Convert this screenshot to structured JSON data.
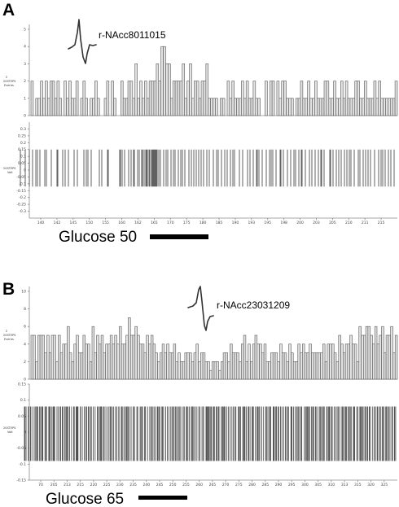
{
  "chart_data": [
    {
      "type": "bar",
      "panel": "A",
      "unit_label": "r-NAcc8011015",
      "stimulus_label": "Glucose 50",
      "histogram": {
        "ylabel_lines": [
          "Σ",
          "20STEPS",
          "Events"
        ],
        "yticks": [
          0,
          1,
          2,
          3,
          4,
          5
        ],
        "ylim": [
          0,
          5
        ],
        "counts": [
          2,
          0,
          1,
          1,
          2,
          1,
          2,
          1,
          2,
          2,
          1,
          2,
          1,
          0,
          2,
          1,
          2,
          1,
          1,
          2,
          0,
          1,
          2,
          1,
          0,
          1,
          1,
          2,
          1,
          0,
          0,
          1,
          2,
          0,
          2,
          1,
          0,
          0,
          2,
          1,
          1,
          2,
          2,
          1,
          3,
          1,
          2,
          1,
          2,
          1,
          2,
          2,
          2,
          3,
          2,
          4,
          4,
          3,
          3,
          1,
          2,
          2,
          2,
          2,
          3,
          1,
          2,
          3,
          1,
          2,
          2,
          1,
          2,
          2,
          3,
          1,
          1,
          1,
          1,
          0,
          1,
          1,
          0,
          2,
          1,
          2,
          1,
          1,
          1,
          2,
          1,
          2,
          1,
          1,
          2,
          1,
          1,
          0,
          0,
          2,
          0,
          2,
          2,
          0,
          2,
          1,
          2,
          2,
          1,
          1,
          1,
          0,
          1,
          1,
          2,
          1,
          1,
          2,
          1,
          1,
          2,
          1,
          1,
          1,
          2,
          2,
          1,
          1,
          2,
          1,
          1,
          2,
          1,
          2,
          1,
          1,
          1,
          2,
          2,
          1,
          1,
          2,
          1,
          1,
          1,
          2,
          1,
          2,
          1,
          1,
          1,
          1,
          1,
          1,
          2
        ]
      },
      "raster": {
        "ylabel_lines": [
          "20STEPS",
          "Volt"
        ],
        "yticks": [
          0.3,
          0.25,
          0.2,
          0.15,
          0.1,
          0.05,
          0,
          -0.05,
          -0.1,
          -0.15,
          -0.2,
          -0.25,
          -0.3
        ],
        "ylim": [
          -0.35,
          0.35
        ],
        "spike_amplitude": [
          -0.12,
          0.15
        ],
        "spike_times": [
          25,
          31,
          36,
          40,
          44,
          46,
          49,
          55,
          57,
          63,
          70,
          71,
          77,
          80,
          84,
          91,
          95,
          103,
          106,
          108,
          112,
          122,
          125,
          132,
          133,
          147,
          148,
          150,
          153,
          158,
          161,
          164,
          165,
          169,
          171,
          174,
          175,
          177,
          179,
          180,
          181,
          183,
          184,
          186,
          187,
          188,
          189,
          190,
          191,
          192,
          193,
          195,
          197,
          201,
          204,
          206,
          210,
          213,
          215,
          219,
          222,
          224,
          227,
          232,
          235,
          238,
          241,
          244,
          247,
          250,
          254,
          257,
          262,
          266,
          268,
          272,
          276,
          279,
          283,
          286,
          288,
          294,
          298,
          304,
          307,
          311,
          315,
          316,
          318,
          322,
          327,
          331,
          333,
          335,
          339,
          344,
          345,
          348,
          353,
          357,
          361,
          363,
          367,
          370,
          371,
          375,
          380,
          383,
          387,
          391,
          394,
          395,
          398,
          405,
          406,
          409,
          413,
          416,
          419,
          423,
          426,
          429,
          431,
          435,
          440,
          442,
          446,
          449,
          452,
          455,
          460,
          465,
          468,
          470,
          473,
          477,
          480,
          484
        ]
      },
      "xaxis": {
        "range": [
          134,
          318
        ],
        "ticks": [
          140,
          142,
          145,
          150,
          155,
          160,
          162,
          165,
          170,
          175,
          180,
          185,
          190,
          193,
          195,
          198,
          200,
          203,
          205,
          210,
          211,
          215
        ]
      }
    },
    {
      "type": "bar",
      "panel": "B",
      "unit_label": "r-NAcc23031209",
      "stimulus_label": "Glucose 65",
      "histogram": {
        "ylabel_lines": [
          "Σ",
          "20STEPS",
          "Events"
        ],
        "yticks": [
          0,
          2,
          4,
          6,
          8,
          10
        ],
        "ylim": [
          0,
          10
        ],
        "counts": [
          5,
          5,
          2,
          5,
          5,
          5,
          3,
          5,
          3,
          5,
          5,
          2,
          5,
          3,
          4,
          4,
          6,
          3,
          2,
          4,
          5,
          3,
          3,
          5,
          4,
          4,
          2,
          6,
          3,
          5,
          4,
          5,
          3,
          4,
          4,
          5,
          4,
          5,
          4,
          6,
          4,
          4,
          5,
          7,
          5,
          5,
          6,
          5,
          4,
          4,
          3,
          5,
          4,
          5,
          4,
          3,
          2,
          3,
          4,
          3,
          4,
          3,
          3,
          4,
          2,
          3,
          2,
          2,
          3,
          3,
          3,
          2,
          3,
          4,
          2,
          3,
          3,
          2,
          2,
          1,
          2,
          2,
          2,
          1,
          2,
          3,
          3,
          2,
          4,
          3,
          3,
          3,
          2,
          4,
          5,
          2,
          4,
          2,
          4,
          5,
          4,
          4,
          3,
          4,
          2,
          2,
          3,
          3,
          3,
          2,
          4,
          3,
          3,
          2,
          4,
          3,
          2,
          2,
          4,
          3,
          4,
          3,
          3,
          4,
          3,
          3,
          3,
          3,
          3,
          4,
          2,
          4,
          4,
          4,
          3,
          2,
          5,
          4,
          3,
          4,
          4,
          5,
          4,
          4,
          2,
          6,
          5,
          5,
          6,
          6,
          5,
          4,
          6,
          4,
          5,
          6,
          3,
          5,
          5,
          6,
          3,
          5
        ]
      },
      "raster": {
        "ylabel_lines": [
          "20STEPS",
          "Volt"
        ],
        "yticks": [
          0.15,
          0.1,
          0.05,
          0,
          -0.05,
          -0.1,
          -0.15
        ],
        "ylim": [
          -0.15,
          0.15
        ],
        "spike_amplitude": [
          -0.09,
          0.08
        ],
        "spike_times": [
          30,
          30.6,
          32,
          34.8,
          35.2,
          37.5,
          37.9,
          40.5,
          42.9,
          44.1,
          45.4,
          46.3,
          48.4,
          49.8,
          51.3,
          52.2,
          52.6,
          55.2,
          56.3,
          57.1,
          59.9,
          60.3,
          61.2,
          61.6,
          63.7,
          65.2,
          66,
          66.6,
          67.1,
          70,
          72,
          72.2,
          74.2,
          74.6,
          76.5,
          77.3,
          79.6,
          80.1,
          81.6,
          82.6,
          83.8,
          85.5,
          87.9,
          90.5,
          91.2,
          93.5,
          94.1,
          94.9,
          95.3,
          95.8,
          98.6,
          98.8,
          101,
          103.5,
          105.4,
          106.3,
          108.4,
          109.2,
          111.2,
          112.2,
          114.6,
          116.8,
          119.6,
          120.6,
          122.3,
          123.5,
          124.5,
          124.8,
          126.8,
          128,
          130.1,
          132.7,
          133,
          135.1,
          135.6,
          137.2,
          137.7,
          139.6,
          141.8,
          143.5,
          145.8,
          146.2,
          148.9,
          149.3,
          150.2,
          152.2,
          154,
          155.3,
          156.1,
          157.3,
          158.8,
          161,
          163.5,
          164.9,
          165.2,
          168.1,
          169.1,
          172.1,
          173.2,
          174.6,
          175,
          177.6,
          178.6,
          181.2,
          183.9,
          185.6,
          185.8,
          187.2,
          189.1,
          190.7,
          193.1,
          193.9,
          195.2,
          196.3,
          198.8,
          199.6,
          200.9,
          203.5,
          205.7,
          206.2,
          209,
          209.2,
          211.1,
          212.3,
          213.8,
          215.4,
          216.8,
          218.6,
          220,
          221.2,
          223.7,
          225.8,
          226.3,
          228.8,
          229.6,
          230.8,
          232.6,
          234.9,
          235.2,
          236.3,
          237.2,
          239.2,
          239.6,
          241.8,
          244.1,
          245.6,
          248.1,
          249.7,
          250,
          253,
          253.6,
          254.4,
          255.5,
          256.6,
          257.9,
          259.1,
          259.5,
          261.7,
          262.3,
          263.3,
          265.5,
          266.2,
          268,
          269,
          271.8,
          272.1,
          273.5,
          274.3,
          275.5,
          276.3,
          278.6,
          280.6,
          282.6,
          284.8,
          286.5,
          288.4,
          289.7,
          292.7,
          293.6,
          294.1,
          295.4,
          298.2,
          299,
          300.2,
          300.8,
          302.4,
          304.8,
          305.5,
          307.1,
          309.5,
          310.6,
          311.2,
          313.7,
          315.7,
          316.3,
          317.2,
          318.6,
          320.8,
          321.1,
          323.7,
          326.4,
          326.8,
          328,
          330,
          331.4,
          332.4,
          335.5,
          336.1,
          336.8,
          338.7,
          339.5,
          341.4,
          342.2,
          344.5,
          346.2,
          348.3,
          350.5,
          352,
          353.7,
          354.3,
          357.3,
          357.7,
          358.6,
          360.6,
          362.7,
          364.4,
          365.9,
          367,
          368.9,
          370.3,
          370.6,
          373.8,
          375.3,
          376.7,
          377.6,
          378.2,
          379.6,
          380.1,
          382.4,
          383.9,
          385.1,
          385.3,
          387.4,
          388.2,
          390.4,
          392.7,
          393.3,
          394.3,
          396.3,
          396.6,
          397.8,
          398.2,
          401.2,
          401.9,
          403.6,
          404.4,
          405,
          407.1,
          408,
          410.4,
          412.3,
          414.1,
          415.6,
          417.2,
          419.9,
          420.8,
          421.4,
          423.3,
          424.6,
          425.6,
          427.4,
          428.9,
          430.1,
          431.3,
          434,
          434.9,
          435.5,
          438.1,
          439.6,
          441.9,
          442.6,
          443.8,
          444.8,
          446,
          448.1,
          448.9,
          450.8,
          451.6,
          453.5,
          454.5,
          457.3,
          459.4,
          459.7,
          461.7,
          463.4,
          463.9,
          466,
          467.2,
          469.3,
          470.1,
          471.5,
          473.7,
          474.5,
          476.1,
          477.1,
          478.9,
          481.2,
          482.1,
          484.4,
          484.6,
          485.9
        ]
      },
      "xaxis": {
        "range": [
          26,
          332
        ],
        "ticks": [
          70,
          205,
          213,
          215,
          220,
          225,
          230,
          235,
          240,
          245,
          250,
          255,
          260,
          265,
          270,
          275,
          280,
          285,
          290,
          295,
          300,
          305,
          310,
          313,
          315,
          320,
          325
        ]
      }
    }
  ]
}
